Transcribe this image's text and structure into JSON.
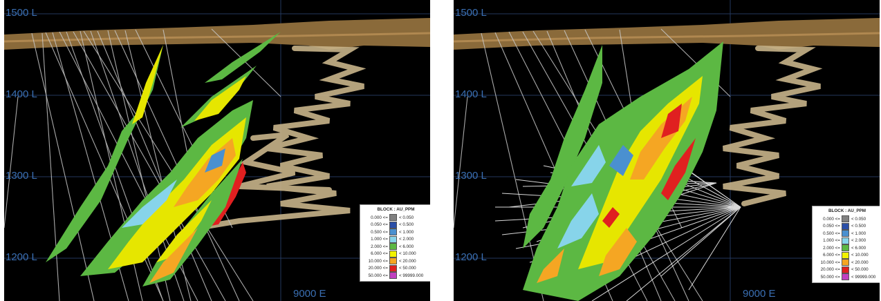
{
  "panels": [
    {
      "levels": [
        "1500 L",
        "1400 L",
        "1300 L",
        "1200 L"
      ],
      "easting": "9000 E",
      "legend_title": "BLOCK : AU_PPM"
    },
    {
      "levels": [
        "1500 L",
        "1400 L",
        "1300 L",
        "1200 L"
      ],
      "easting": "9000 E",
      "legend_title": "BLOCK : AU_PPM"
    }
  ],
  "legend_items": [
    {
      "low": "0.000 <=",
      "high": "< 0.050",
      "color": "#808080"
    },
    {
      "low": "0.050 <=",
      "high": "< 0.500",
      "color": "#2b4fa8"
    },
    {
      "low": "0.500 <=",
      "high": "< 1.000",
      "color": "#4a90d0"
    },
    {
      "low": "1.000 <=",
      "high": "< 2.000",
      "color": "#87d4ea"
    },
    {
      "low": "2.000 <=",
      "high": "< 6.000",
      "color": "#5cb843"
    },
    {
      "low": "6.000 <=",
      "high": "< 10.000",
      "color": "#f2f200"
    },
    {
      "low": "10.000 <=",
      "high": "< 20.000",
      "color": "#f5a623"
    },
    {
      "low": "20.000 <=",
      "high": "< 50.000",
      "color": "#e02020"
    },
    {
      "low": "50.000 <=",
      "high": "< 99999.000",
      "color": "#c040c0"
    }
  ],
  "colors": {
    "background": "#000000",
    "topography": "#8a6a3a",
    "workings": "#c8b48a",
    "grid": "#23395e",
    "drillholes": "#c8c8c8",
    "label": "#3a6fb3"
  }
}
